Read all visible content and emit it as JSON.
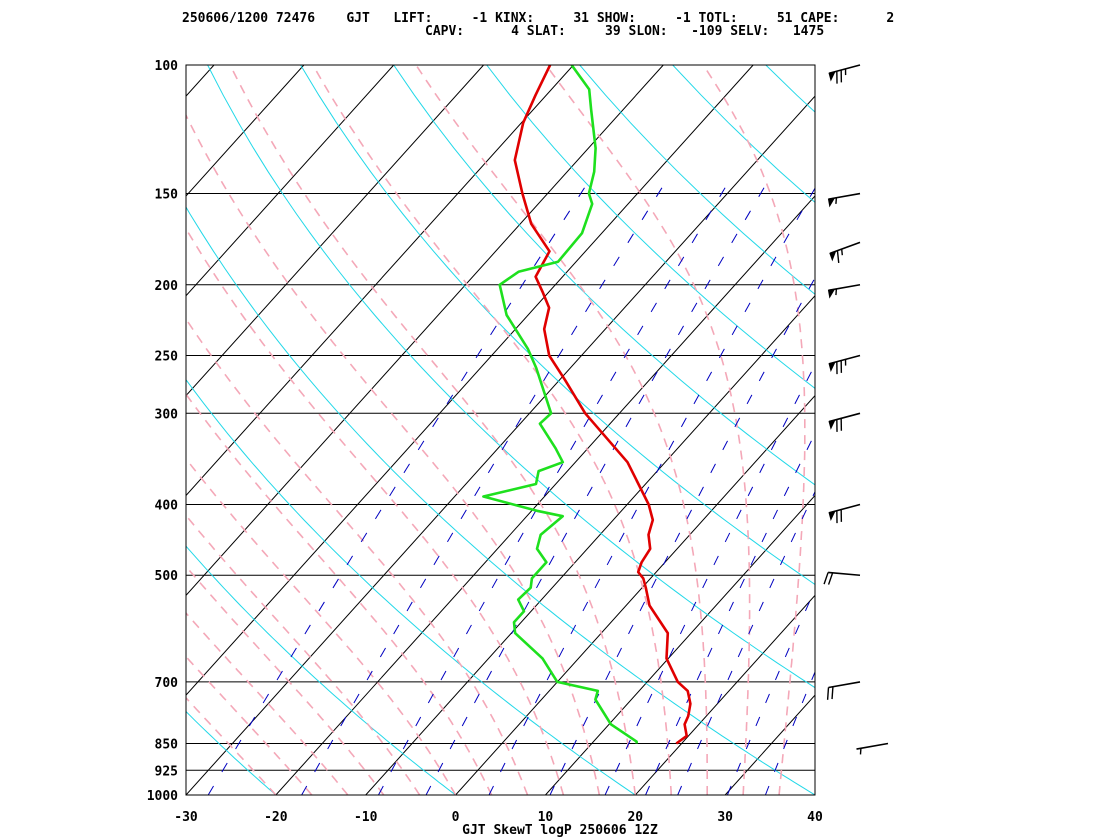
{
  "header": {
    "line1": "250606/1200 72476    GJT   LIFT:     -1 KINX:     31 SHOW:     -1 TOTL:     51 CAPE:      2",
    "line2": "CAPV:      4 SLAT:     39 SLON:   -109 SELV:   1475"
  },
  "chart_data": {
    "type": "line",
    "title": "GJT SkewT logP 250606 12Z",
    "xlabel": "",
    "ylabel": "",
    "x_ticks": [
      "-30",
      "-20",
      "-10",
      "0",
      "10",
      "20",
      "30",
      "40"
    ],
    "y_ticks": [
      "100",
      "150",
      "200",
      "250",
      "300",
      "400",
      "500",
      "700",
      "850",
      "925",
      "1000"
    ],
    "xlim": [
      -30,
      40
    ],
    "ylim": [
      1000,
      100
    ],
    "grid": true,
    "colors": {
      "temperature": "#e00000",
      "dewpoint": "#1ee01e",
      "isotherms": "#000000",
      "isobars": "#000000",
      "dry_adiabats": "#22d8e8",
      "moist_adiabats": "#f4a8b8",
      "mixing_ratio": "#0000c0"
    },
    "series": [
      {
        "key": "temperature",
        "points": [
          [
            850,
            19.4
          ],
          [
            830,
            19.8
          ],
          [
            800,
            18.4
          ],
          [
            780,
            18.0
          ],
          [
            750,
            17.0
          ],
          [
            720,
            15.4
          ],
          [
            700,
            13.4
          ],
          [
            650,
            9.8
          ],
          [
            600,
            7.4
          ],
          [
            550,
            2.6
          ],
          [
            520,
            0.4
          ],
          [
            505,
            -0.8
          ],
          [
            495,
            -2.0
          ],
          [
            480,
            -2.6
          ],
          [
            460,
            -3.0
          ],
          [
            440,
            -4.6
          ],
          [
            420,
            -5.6
          ],
          [
            400,
            -7.6
          ],
          [
            350,
            -14.2
          ],
          [
            300,
            -23.8
          ],
          [
            270,
            -29.4
          ],
          [
            250,
            -33.6
          ],
          [
            230,
            -36.8
          ],
          [
            215,
            -38.4
          ],
          [
            205,
            -40.6
          ],
          [
            195,
            -43.0
          ],
          [
            180,
            -44.0
          ],
          [
            165,
            -48.8
          ],
          [
            150,
            -52.8
          ],
          [
            135,
            -57.0
          ],
          [
            120,
            -59.8
          ],
          [
            110,
            -61.2
          ],
          [
            100,
            -62.6
          ]
        ]
      },
      {
        "key": "dewpoint",
        "points": [
          [
            850,
            15.0
          ],
          [
            845,
            14.8
          ],
          [
            800,
            10.2
          ],
          [
            740,
            6.0
          ],
          [
            720,
            5.4
          ],
          [
            700,
            0.0
          ],
          [
            650,
            -4.0
          ],
          [
            600,
            -9.6
          ],
          [
            580,
            -10.8
          ],
          [
            560,
            -10.8
          ],
          [
            540,
            -12.6
          ],
          [
            520,
            -12.4
          ],
          [
            505,
            -13.2
          ],
          [
            480,
            -13.2
          ],
          [
            460,
            -15.6
          ],
          [
            440,
            -16.6
          ],
          [
            415,
            -16.0
          ],
          [
            408,
            -19.4
          ],
          [
            390,
            -26.8
          ],
          [
            375,
            -22.2
          ],
          [
            360,
            -23.2
          ],
          [
            350,
            -21.4
          ],
          [
            335,
            -23.6
          ],
          [
            310,
            -27.8
          ],
          [
            300,
            -27.6
          ],
          [
            260,
            -33.8
          ],
          [
            245,
            -36.6
          ],
          [
            220,
            -42.4
          ],
          [
            200,
            -46.2
          ],
          [
            192,
            -45.4
          ],
          [
            186,
            -42.0
          ],
          [
            170,
            -42.2
          ],
          [
            155,
            -44.0
          ],
          [
            150,
            -45.4
          ],
          [
            140,
            -47.0
          ],
          [
            130,
            -49.2
          ],
          [
            115,
            -53.6
          ],
          [
            108,
            -55.8
          ],
          [
            100,
            -60.2
          ]
        ]
      }
    ],
    "wind_barbs": [
      {
        "pressure": 100,
        "direction": 255,
        "speed_kt": 75
      },
      {
        "pressure": 150,
        "direction": 260,
        "speed_kt": 55
      },
      {
        "pressure": 175,
        "direction": 250,
        "speed_kt": 65
      },
      {
        "pressure": 200,
        "direction": 260,
        "speed_kt": 55
      },
      {
        "pressure": 250,
        "direction": 255,
        "speed_kt": 75
      },
      {
        "pressure": 300,
        "direction": 255,
        "speed_kt": 70
      },
      {
        "pressure": 400,
        "direction": 255,
        "speed_kt": 70
      },
      {
        "pressure": 500,
        "direction": 275,
        "speed_kt": 20
      },
      {
        "pressure": 700,
        "direction": 260,
        "speed_kt": 20
      },
      {
        "pressure": 850,
        "direction": 260,
        "speed_kt": 5
      }
    ]
  }
}
